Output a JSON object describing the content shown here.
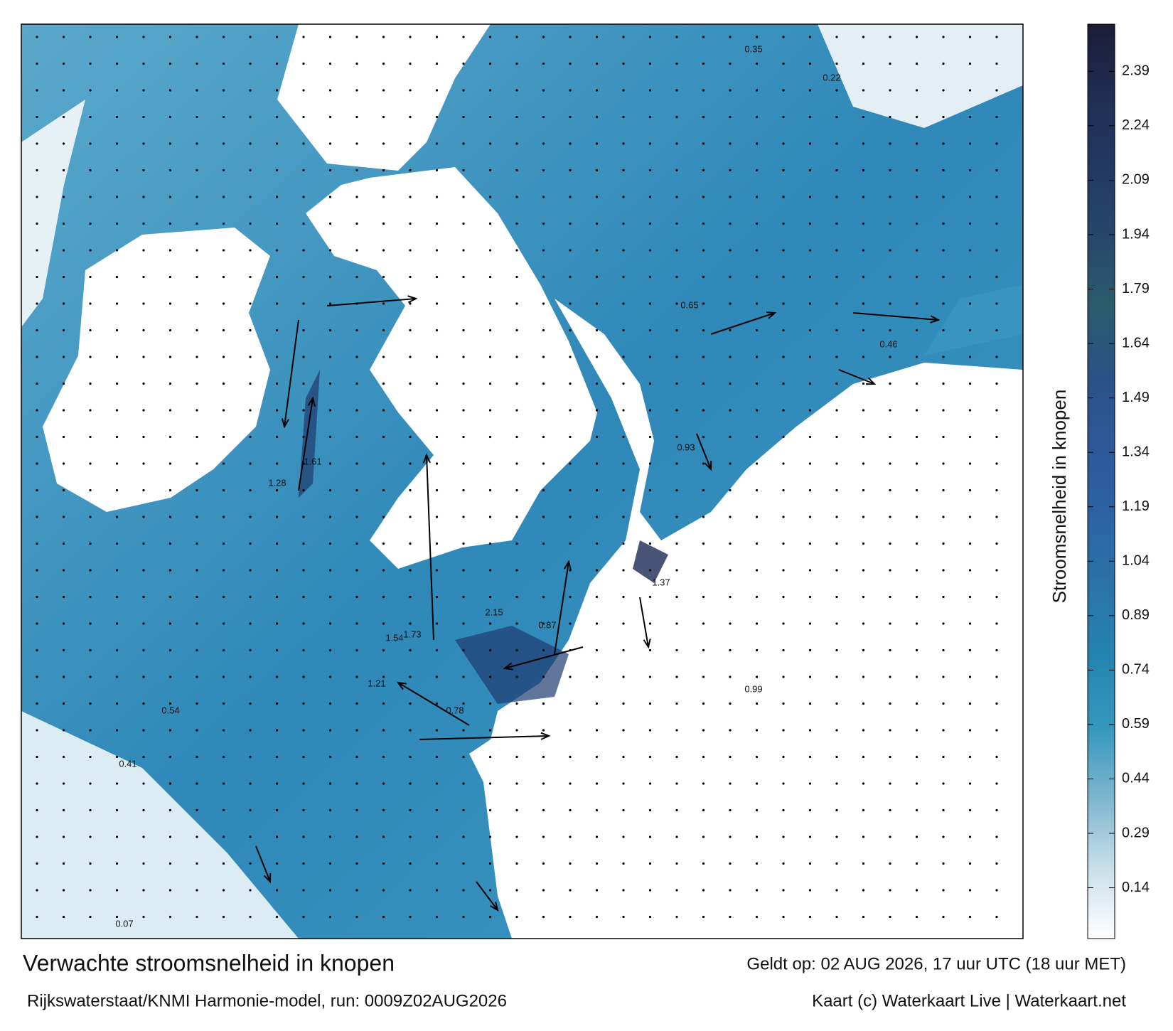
{
  "map": {
    "speed_labels": [
      1.61,
      1.73,
      2.15,
      1.54,
      1.21,
      1.37,
      0.99,
      0.87,
      0.54,
      0.41,
      0.78,
      0.65,
      0.35,
      1.28,
      0.93,
      0.46,
      0.22,
      0.07
    ]
  },
  "colorbar": {
    "label": "Stroomsnelheid in knopen",
    "lim": [
      0,
      2.52
    ],
    "ticks": [
      0.14,
      0.29,
      0.44,
      0.59,
      0.74,
      0.89,
      1.04,
      1.19,
      1.34,
      1.49,
      1.64,
      1.79,
      1.94,
      2.09,
      2.24,
      2.39
    ],
    "colors": [
      "#ffffff",
      "#c9dfe9",
      "#7db6cf",
      "#3597bd",
      "#2484b1",
      "#2a73a9",
      "#2c63a2",
      "#2d5898",
      "#2b5287",
      "#2a5c6c",
      "#27466a",
      "#223862",
      "#1f2d52",
      "#1c1c38"
    ]
  },
  "footer": {
    "title": "Verwachte stroomsnelheid in knopen",
    "valid": "Geldt op: 02 AUG 2026, 17 uur UTC (18 uur MET)",
    "model": "Rijkswaterstaat/KNMI Harmonie-model, run: 0009Z02AUG2026",
    "credit": "Kaart (c) Waterkaart Live | Waterkaart.net"
  }
}
